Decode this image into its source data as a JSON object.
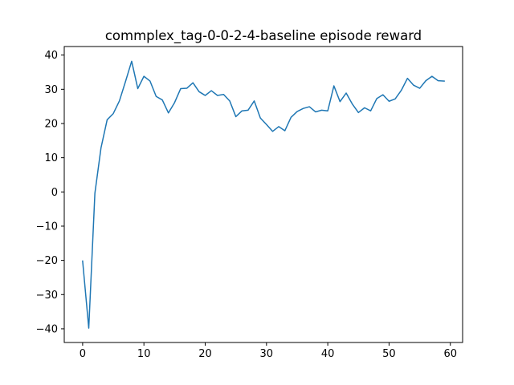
{
  "chart_data": {
    "type": "line",
    "title": "commplex_tag-0-0-2-4-baseline episode reward",
    "xlabel": "",
    "ylabel": "",
    "xlim": [
      -3,
      62
    ],
    "ylim": [
      -44,
      42.5
    ],
    "xticks": [
      0,
      10,
      20,
      30,
      40,
      50,
      60
    ],
    "xtick_labels": [
      "0",
      "10",
      "20",
      "30",
      "40",
      "50",
      "60"
    ],
    "yticks": [
      -40,
      -30,
      -20,
      -10,
      0,
      10,
      20,
      30,
      40
    ],
    "ytick_labels": [
      "−40",
      "−30",
      "−20",
      "−10",
      "0",
      "10",
      "20",
      "30",
      "40"
    ],
    "grid": false,
    "series": [
      {
        "color": "#1f77b4",
        "x": [
          0,
          1,
          2,
          3,
          4,
          5,
          6,
          7,
          8,
          9,
          10,
          11,
          12,
          13,
          14,
          15,
          16,
          17,
          18,
          19,
          20,
          21,
          22,
          23,
          24,
          25,
          26,
          27,
          28,
          29,
          30,
          31,
          32,
          33,
          34,
          35,
          36,
          37,
          38,
          39,
          40,
          41,
          42,
          43,
          44,
          45,
          46,
          47,
          48,
          49,
          50,
          51,
          52,
          53,
          54,
          55,
          56,
          57,
          58,
          59
        ],
        "y": [
          -20.2,
          -39.8,
          -0.4,
          12.9,
          21.1,
          22.9,
          26.6,
          32.3,
          38.2,
          30.2,
          33.8,
          32.4,
          27.9,
          26.9,
          23.1,
          26.1,
          30.2,
          30.3,
          31.9,
          29.3,
          28.2,
          29.6,
          28.2,
          28.5,
          26.6,
          22.0,
          23.7,
          23.9,
          26.6,
          21.6,
          19.7,
          17.7,
          19.1,
          17.9,
          21.8,
          23.5,
          24.4,
          24.9,
          23.4,
          23.9,
          23.7,
          31.0,
          26.4,
          28.9,
          25.7,
          23.2,
          24.6,
          23.7,
          27.3,
          28.4,
          26.5,
          27.2,
          29.7,
          33.2,
          31.2,
          30.3,
          32.5,
          33.8,
          32.5,
          32.4
        ]
      }
    ]
  }
}
